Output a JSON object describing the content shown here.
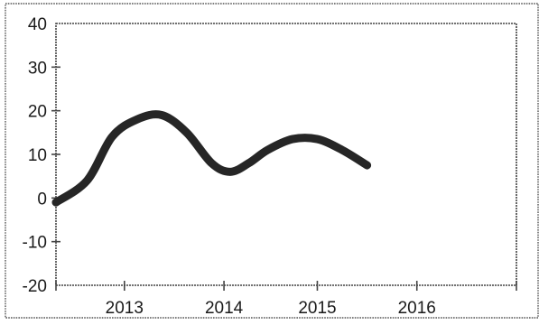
{
  "chart_data": {
    "type": "line",
    "title": "",
    "xlabel": "",
    "ylabel": "",
    "xlim": [
      2012.65,
      2016.35
    ],
    "ylim": [
      -20,
      40
    ],
    "x_ticks": [
      2012.65,
      2013.2,
      2014.0,
      2014.75,
      2015.55,
      2016.35
    ],
    "x_tick_labels": [
      "2013",
      "2014",
      "2015",
      "2016"
    ],
    "x_label_positions": [
      2013.2,
      2014.0,
      2014.75,
      2015.55
    ],
    "y_ticks": [
      40,
      30,
      20,
      10,
      0,
      -10,
      -20
    ],
    "y_tick_labels": [
      "40",
      "30",
      "20",
      "10",
      "0",
      "-10",
      "-20"
    ],
    "grid": false,
    "legend": "none",
    "series": [
      {
        "color": "#262626",
        "x": [
          2012.65,
          2012.9,
          2013.1,
          2013.3,
          2013.5,
          2013.7,
          2013.9,
          2014.05,
          2014.2,
          2014.35,
          2014.55,
          2014.75,
          2014.95,
          2015.15
        ],
        "values": [
          -1,
          4,
          14,
          18,
          19,
          15,
          8,
          6,
          8,
          11,
          13.5,
          13.5,
          11,
          7.5
        ]
      }
    ]
  }
}
